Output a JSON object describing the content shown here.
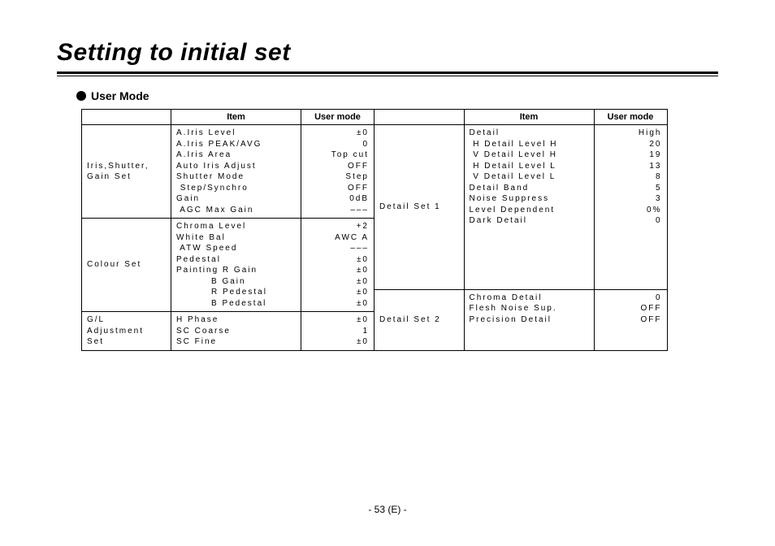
{
  "page": {
    "title": "Setting to initial set",
    "section_heading": "User Mode",
    "footer": "- 53 (E) -"
  },
  "headers": {
    "item": "Item",
    "user_mode": "User mode"
  },
  "left_table": {
    "groups": [
      {
        "category": "Iris,Shutter,\nGain Set",
        "items": "A.Iris Level\nA.Iris PEAK/AVG\nA.Iris Area\nAuto Iris Adjust\nShutter Mode\n Step/Synchro\nGain\n AGC Max Gain",
        "values": "±0\n0\nTop cut\nOFF\nStep\nOFF\n0dB\n–––"
      },
      {
        "category": "Colour Set",
        "items": "Chroma Level\nWhite Bal\n ATW Speed\nPedestal\nPainting R Gain\n         B Gain\n         R Pedestal\n         B Pedestal",
        "values": "+2\nAWC A\n–––\n±0\n±0\n±0\n±0\n±0"
      },
      {
        "category": "G/L\nAdjustment\nSet",
        "items": "H Phase\nSC Coarse\nSC Fine",
        "values": "±0\n1\n±0"
      }
    ]
  },
  "right_table": {
    "groups": [
      {
        "category": "Detail Set 1",
        "items": "Detail\n H Detail Level H\n V Detail Level H\n H Detail Level L\n V Detail Level L\nDetail Band\nNoise Suppress\nLevel Dependent\nDark Detail",
        "values": "High\n20\n19\n13\n8\n5\n3\n0%\n0"
      },
      {
        "category": "Detail Set 2",
        "items": "Chroma Detail\nFlesh Noise Sup.\nPrecision Detail",
        "values": "0\nOFF\nOFF"
      }
    ]
  }
}
